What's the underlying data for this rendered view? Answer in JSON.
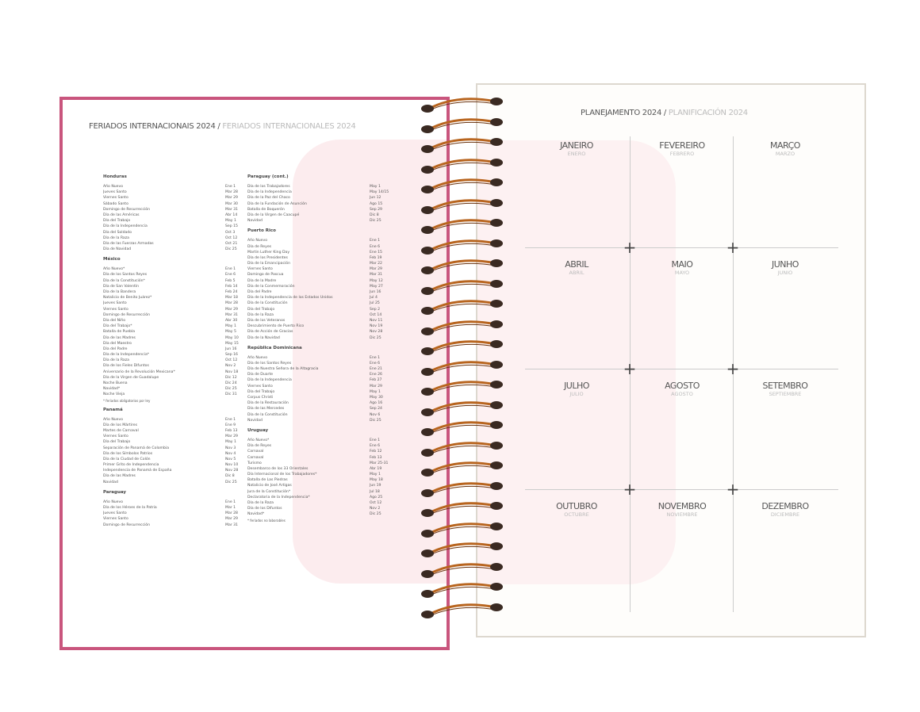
{
  "left_page": {
    "title": "FERIADOS INTERNACIONAIS 2024",
    "title_sep": " / ",
    "title_es": "FERIADOS INTERNACIONALES 2024",
    "columns": [
      {
        "sections": [
          {
            "name": "Honduras",
            "items": [
              [
                "Año Nuevo",
                "Ene 1"
              ],
              [
                "Jueves Santo",
                "Mar 28"
              ],
              [
                "Viernes Santo",
                "Mar 29"
              ],
              [
                "Sábado Santo",
                "Mar 30"
              ],
              [
                "Domingo de Resurrección",
                "Mar 31"
              ],
              [
                "Día de las Américas",
                "Abr 14"
              ],
              [
                "Día del Trabajo",
                "May 1"
              ],
              [
                "Día de la Independencia",
                "Sep 15"
              ],
              [
                "Día del Soldado",
                "Oct 3"
              ],
              [
                "Día de la Raza",
                "Oct 12"
              ],
              [
                "Día de las Fuerzas Armadas",
                "Oct 21"
              ],
              [
                "Día de Navidad",
                "Dic 25"
              ]
            ]
          },
          {
            "name": "México",
            "items": [
              [
                "Año Nuevo*",
                "Ene 1"
              ],
              [
                "Día de los Santos Reyes",
                "Ene 6"
              ],
              [
                "Día de la Constitución*",
                "Feb 5"
              ],
              [
                "Día de San Valentín",
                "Feb 14"
              ],
              [
                "Día de la Bandera",
                "Feb 24"
              ],
              [
                "Natalicio de Benito Juárez*",
                "Mar 18"
              ],
              [
                "Jueves Santo",
                "Mar 28"
              ],
              [
                "Viernes Santo",
                "Mar 29"
              ],
              [
                "Domingo de Resurrección",
                "Mar 31"
              ],
              [
                "Día del Niño",
                "Abr 30"
              ],
              [
                "Día del Trabajo*",
                "May 1"
              ],
              [
                "Batalla de Puebla",
                "May 5"
              ],
              [
                "Día de las Madres",
                "May 10"
              ],
              [
                "Día del Maestro",
                "May 15"
              ],
              [
                "Día del Padre",
                "Jun 16"
              ],
              [
                "Día de la Independencia*",
                "Sep 16"
              ],
              [
                "Día de la Raza",
                "Oct 12"
              ],
              [
                "Día de los Fieles Difuntos",
                "Nov 2"
              ],
              [
                "Aniversario de la Revolución Mexicana*",
                "Nov 18"
              ],
              [
                "Día de la Virgen de Guadalupe",
                "Dic 12"
              ],
              [
                "Noche Buena",
                "Dic 24"
              ],
              [
                "Navidad*",
                "Dic 25"
              ],
              [
                "Noche Vieja",
                "Dic 31"
              ]
            ],
            "note": "* feriados obligatorios por ley"
          },
          {
            "name": "Panamá",
            "items": [
              [
                "Año Nuevo",
                "Ene 1"
              ],
              [
                "Día de los Mártires",
                "Ene 9"
              ],
              [
                "Martes de Carnaval",
                "Feb 13"
              ],
              [
                "Viernes Santo",
                "Mar 29"
              ],
              [
                "Día del Trabajo",
                "May 1"
              ],
              [
                "Separación de Panamá de Colombia",
                "Nov 3"
              ],
              [
                "Día de los Símbolos Patrios",
                "Nov 4"
              ],
              [
                "Día de la Ciudad de Colón",
                "Nov 5"
              ],
              [
                "Primer Grito de Independencia",
                "Nov 10"
              ],
              [
                "Independencia de Panamá de España",
                "Nov 28"
              ],
              [
                "Día de las Madres",
                "Dic 8"
              ],
              [
                "Navidad",
                "Dic 25"
              ]
            ]
          },
          {
            "name": "Paraguay",
            "items": [
              [
                "Año Nuevo",
                "Ene 1"
              ],
              [
                "Día de los Héroes de la Patria",
                "Mar 1"
              ],
              [
                "Jueves Santo",
                "Mar 28"
              ],
              [
                "Viernes Santo",
                "Mar 29"
              ],
              [
                "Domingo de Resurrección",
                "Mar 31"
              ]
            ]
          }
        ]
      },
      {
        "sections": [
          {
            "name": "Paraguay (cont.)",
            "items": [
              [
                "Día de los Trabajadores",
                "May 1"
              ],
              [
                "Día de la Independencia",
                "May 14/15"
              ],
              [
                "Día de la Paz del Chaco",
                "Jun 12"
              ],
              [
                "Día de la Fundación de Asunción",
                "Ago 15"
              ],
              [
                "Batalla de Boquerón",
                "Sep 29"
              ],
              [
                "Día de la Virgen de Caacupé",
                "Dic 8"
              ],
              [
                "Navidad",
                "Dic 25"
              ]
            ]
          },
          {
            "name": "Puerto Rico",
            "items": [
              [
                "Año Nuevo",
                "Ene 1"
              ],
              [
                "Día de Reyes",
                "Ene 6"
              ],
              [
                "Martin Luther King Day",
                "Ene 15"
              ],
              [
                "Día de los Presidentes",
                "Feb 19"
              ],
              [
                "Día de la Emancipación",
                "Mar 22"
              ],
              [
                "Viernes Santo",
                "Mar 29"
              ],
              [
                "Domingo de Pascua",
                "Mar 31"
              ],
              [
                "Día de la Madre",
                "May 12"
              ],
              [
                "Día de la Conmemoración",
                "May 27"
              ],
              [
                "Día del Padre",
                "Jun 16"
              ],
              [
                "Día de la Independencia de los Estados Unidos",
                "Jul 4"
              ],
              [
                "Día de la Constitución",
                "Jul 25"
              ],
              [
                "Día del Trabajo",
                "Sep 2"
              ],
              [
                "Día de la Raza",
                "Oct 14"
              ],
              [
                "Día de los Veteranos",
                "Nov 11"
              ],
              [
                "Descubrimiento de Puerto Rico",
                "Nov 19"
              ],
              [
                "Día de Acción de Gracias",
                "Nov 28"
              ],
              [
                "Día de la Navidad",
                "Dic 25"
              ]
            ]
          },
          {
            "name": "República Dominicana",
            "items": [
              [
                "Año Nuevo",
                "Ene 1"
              ],
              [
                "Día de los Santos Reyes",
                "Ene 6"
              ],
              [
                "Día de Nuestra Señora de la Altagracia",
                "Ene 21"
              ],
              [
                "Día de Duarte",
                "Ene 26"
              ],
              [
                "Día de la Independencia",
                "Feb 27"
              ],
              [
                "Viernes Santo",
                "Mar 29"
              ],
              [
                "Día del Trabajo",
                "May 1"
              ],
              [
                "Corpus Christi",
                "May 30"
              ],
              [
                "Día de la Restauración",
                "Ago 16"
              ],
              [
                "Día de las Mercedes",
                "Sep 24"
              ],
              [
                "Día de la Constitución",
                "Nov 6"
              ],
              [
                "Navidad",
                "Dic 25"
              ]
            ]
          },
          {
            "name": "Uruguay",
            "items": [
              [
                "Año Nuevo*",
                "Ene 1"
              ],
              [
                "Día de Reyes",
                "Ene 6"
              ],
              [
                "Carnaval",
                "Feb 12"
              ],
              [
                "Carnaval",
                "Feb 13"
              ],
              [
                "Turismo",
                "Mar 25-31"
              ],
              [
                "Desembarco de los 33 Orientales",
                "Abr 19"
              ],
              [
                "Día Internacional de los Trabajadores*",
                "May 1"
              ],
              [
                "Batalla de Las Piedras",
                "May 18"
              ],
              [
                "Natalicio de José Artigas",
                "Jun 19"
              ],
              [
                "Jura de la Constitución*",
                "Jul 18"
              ],
              [
                "Declaratoria de la Independencia*",
                "Ago 25"
              ],
              [
                "Día de la Raza",
                "Oct 12"
              ],
              [
                "Día de los Difuntos",
                "Nov 2"
              ],
              [
                "Navidad*",
                "Dic 25"
              ]
            ],
            "note": "* feriados no laborables"
          }
        ]
      }
    ]
  },
  "right_page": {
    "title": "PLANEJAMENTO 2024",
    "title_sep": " / ",
    "title_es": "PLANIFICACIÓN 2024",
    "months": [
      {
        "pt": "JANEIRO",
        "es": "ENERO"
      },
      {
        "pt": "FEVEREIRO",
        "es": "FEBRERO"
      },
      {
        "pt": "MARÇO",
        "es": "MARZO"
      },
      {
        "pt": "ABRIL",
        "es": "ABRIL"
      },
      {
        "pt": "MAIO",
        "es": "MAYO"
      },
      {
        "pt": "JUNHO",
        "es": "JUNIO"
      },
      {
        "pt": "JULHO",
        "es": "JULIO"
      },
      {
        "pt": "AGOSTO",
        "es": "AGOSTO"
      },
      {
        "pt": "SETEMBRO",
        "es": "SEPTIEMBRE"
      },
      {
        "pt": "OUTUBRO",
        "es": "OCTUBRE"
      },
      {
        "pt": "NOVEMBRO",
        "es": "NOVIEMBRE"
      },
      {
        "pt": "DEZEMBRO",
        "es": "DICIEMBRE"
      }
    ]
  },
  "colors": {
    "cover_border": "#c9557d",
    "spiral": "#b8651f",
    "watermark": "#fcecee"
  }
}
